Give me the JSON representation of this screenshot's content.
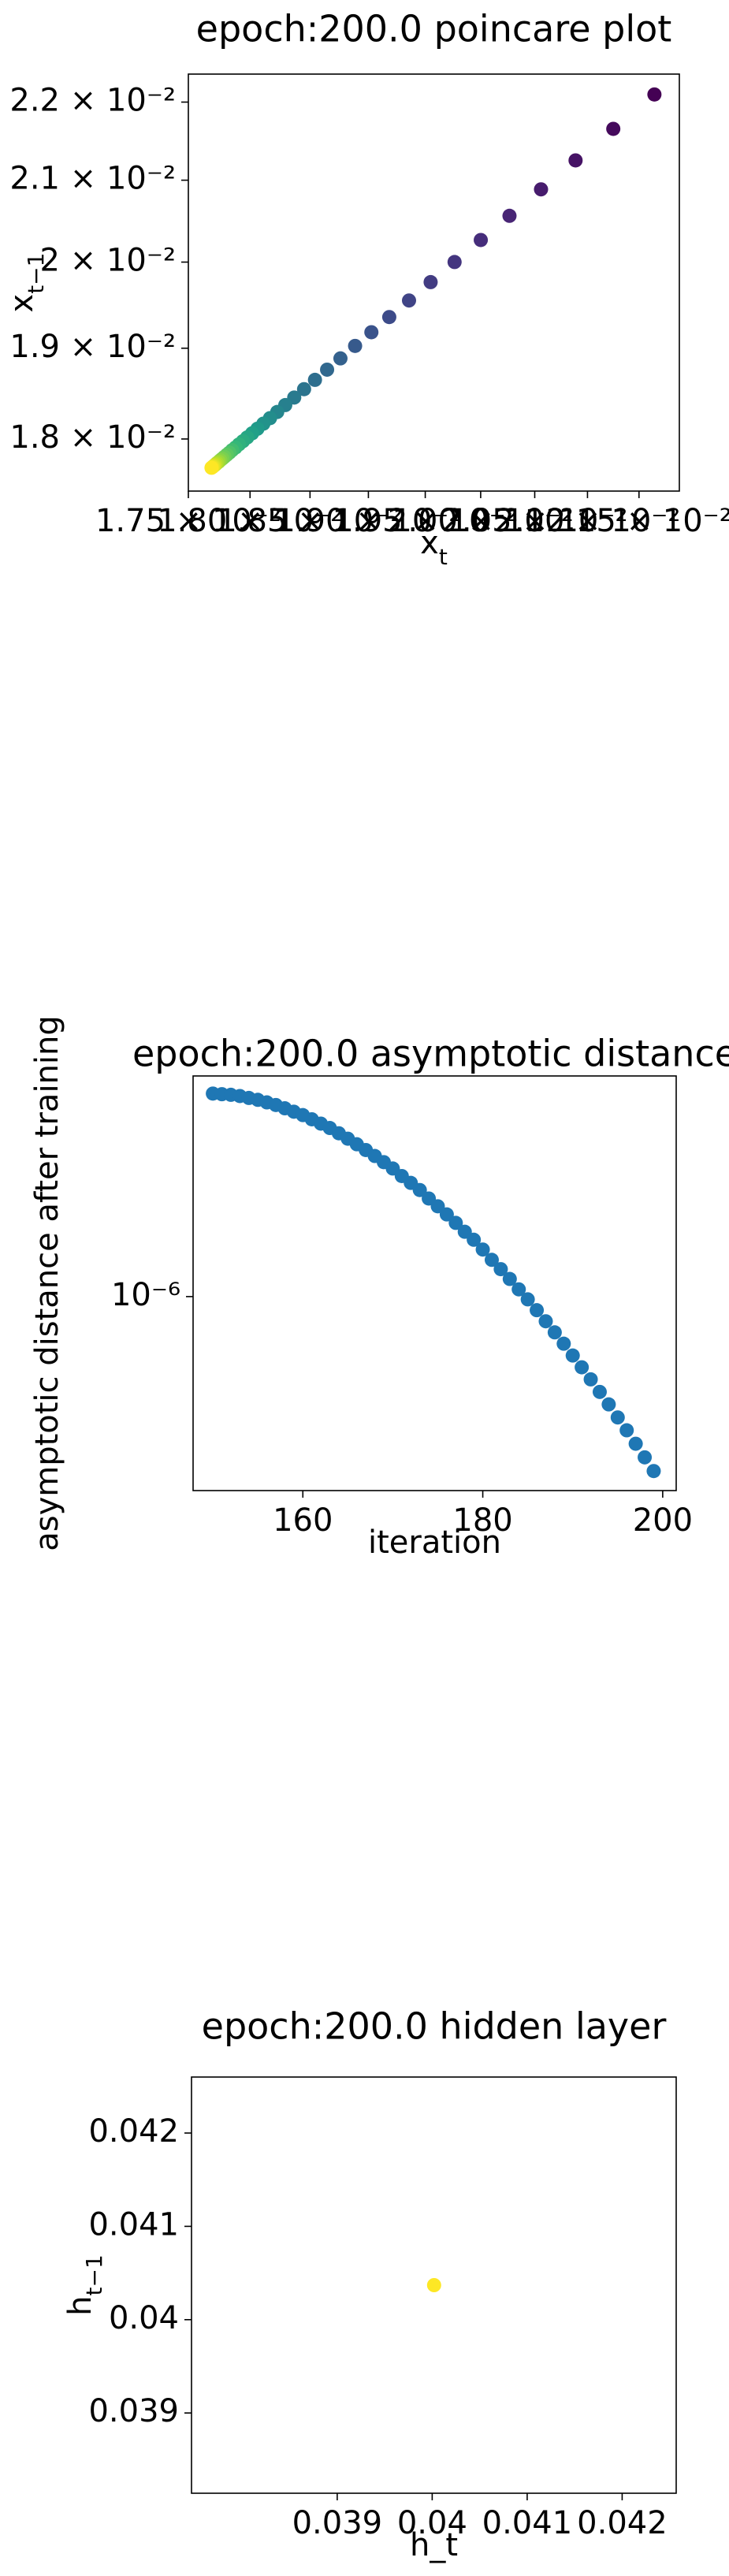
{
  "chart_data": [
    {
      "type": "scatter",
      "title": "epoch:200.0 poincare plot",
      "x_label": "x",
      "x_label_sub": "t",
      "y_label": "x",
      "y_label_sub": "t−1",
      "xscale": "log",
      "yscale": "log",
      "xlim": [
        0.0175,
        0.0219
      ],
      "ylim": [
        0.01745,
        0.02237
      ],
      "xticks": [
        {
          "value": 0.0175,
          "label": "1.75 × 10⁻²"
        },
        {
          "value": 0.018,
          "label": "1.80 × 10⁻²"
        },
        {
          "value": 0.0185,
          "label": "1.85 × 10⁻²"
        },
        {
          "value": 0.019,
          "label": "1.90 × 10⁻²"
        },
        {
          "value": 0.0195,
          "label": "1.95 × 10⁻²"
        },
        {
          "value": 0.02,
          "label": "2.00 × 10⁻²"
        },
        {
          "value": 0.0205,
          "label": "2.05 × 10⁻²"
        },
        {
          "value": 0.021,
          "label": "2.10 × 10⁻²"
        },
        {
          "value": 0.0215,
          "label": "2.15 × 10⁻²"
        }
      ],
      "yticks": [
        {
          "value": 0.018,
          "label": "1.8 × 10⁻²"
        },
        {
          "value": 0.019,
          "label": "1.9 × 10⁻²"
        },
        {
          "value": 0.02,
          "label": "2 × 10⁻²"
        },
        {
          "value": 0.021,
          "label": "2.1 × 10⁻²"
        },
        {
          "value": 0.022,
          "label": "2.2 × 10⁻²"
        }
      ],
      "colormap": "viridis",
      "x": [
        0.021652,
        0.021249,
        0.020886,
        0.020559,
        0.020265,
        0.020001,
        0.019763,
        0.019548,
        0.019356,
        0.019182,
        0.019026,
        0.018885,
        0.018759,
        0.018645,
        0.018542,
        0.01845,
        0.018367,
        0.018292,
        0.018225,
        0.018165,
        0.01811,
        0.018061,
        0.018017,
        0.017977,
        0.017942,
        0.017909,
        0.017881,
        0.017854,
        0.017831,
        0.01781,
        0.017791,
        0.017774,
        0.017758,
        0.017745,
        0.017732,
        0.017721,
        0.017711,
        0.017702,
        0.017694,
        0.017686
      ],
      "values": [
        0.0221,
        0.021652,
        0.021249,
        0.020886,
        0.020559,
        0.020265,
        0.020001,
        0.019763,
        0.019548,
        0.019356,
        0.019182,
        0.019026,
        0.018885,
        0.018759,
        0.018645,
        0.018542,
        0.01845,
        0.018367,
        0.018292,
        0.018225,
        0.018165,
        0.01811,
        0.018061,
        0.018017,
        0.017977,
        0.017942,
        0.017909,
        0.017881,
        0.017854,
        0.017831,
        0.01781,
        0.017791,
        0.017774,
        0.017758,
        0.017745,
        0.017732,
        0.017721,
        0.017711,
        0.017702,
        0.017694
      ]
    },
    {
      "type": "scatter",
      "title": "epoch:200.0 asymptotic distance",
      "x_label": "iteration",
      "y_label": "asymptotic distance after training",
      "yscale": "log",
      "xlim": [
        147.8,
        201.5
      ],
      "ylim": [
        3.5e-07,
        3.3e-06
      ],
      "xticks": [
        160,
        180,
        200
      ],
      "yticks": [
        {
          "value": 1e-06,
          "label": "10⁻⁶"
        }
      ],
      "color": "#1f77b4",
      "x": [
        150,
        151,
        152,
        153,
        154,
        155,
        156,
        157,
        158,
        159,
        160,
        161,
        162,
        163,
        164,
        165,
        166,
        167,
        168,
        169,
        170,
        171,
        172,
        173,
        174,
        175,
        176,
        177,
        178,
        179,
        180,
        181,
        182,
        183,
        184,
        185,
        186,
        187,
        188,
        189,
        190,
        191,
        192,
        193,
        194,
        195,
        196,
        197,
        198,
        199
      ],
      "values": [
        3e-06,
        2.99e-06,
        2.98e-06,
        2.96e-06,
        2.93e-06,
        2.9e-06,
        2.86e-06,
        2.82e-06,
        2.77e-06,
        2.72e-06,
        2.67e-06,
        2.61e-06,
        2.55e-06,
        2.49e-06,
        2.42e-06,
        2.35e-06,
        2.28e-06,
        2.21e-06,
        2.14e-06,
        2.07e-06,
        2e-06,
        1.92e-06,
        1.85e-06,
        1.78e-06,
        1.7e-06,
        1.63e-06,
        1.56e-06,
        1.49e-06,
        1.42e-06,
        1.36e-06,
        1.29e-06,
        1.22e-06,
        1.16e-06,
        1.1e-06,
        1.04e-06,
        9.85e-07,
        9.29e-07,
        8.75e-07,
        8.24e-07,
        7.75e-07,
        7.27e-07,
        6.82e-07,
        6.39e-07,
        5.97e-07,
        5.58e-07,
        5.2e-07,
        4.85e-07,
        4.51e-07,
        4.19e-07,
        3.89e-07
      ]
    },
    {
      "type": "scatter",
      "title": "epoch:200.0 hidden layer",
      "x_label": "h_t",
      "y_label": "h",
      "y_label_sub": "t−1",
      "xlim": [
        0.037466,
        0.042569
      ],
      "ylim": [
        0.03814,
        0.0426
      ],
      "xticks": [
        0.039,
        0.04,
        0.041,
        0.042
      ],
      "yticks": [
        0.039,
        0.04,
        0.041,
        0.042
      ],
      "color": "#fde725",
      "x": [
        0.04002
      ],
      "values": [
        0.04037
      ]
    }
  ]
}
